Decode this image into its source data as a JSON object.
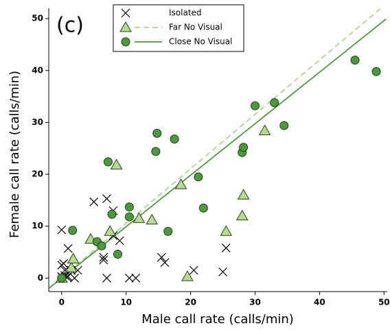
{
  "chart_data": {
    "type": "scatter",
    "annotation": "(c)",
    "x_label": "Male call rate (calls/min)",
    "y_label": "Female call rate (calls/min)",
    "xlim": [
      -2,
      50.5
    ],
    "ylim": [
      -2.6,
      52
    ],
    "xticks": [
      0,
      10,
      20,
      30,
      40,
      50
    ],
    "yticks": [
      0,
      10,
      20,
      30,
      40,
      50
    ],
    "series": [
      {
        "name": "Isolated",
        "marker": "cross",
        "color": "#000000",
        "x": [
          0,
          0,
          0.3,
          0.5,
          0.2,
          0.5,
          1,
          1,
          0.8,
          1.5,
          2,
          2.5,
          6.5,
          6.5,
          7,
          5,
          8,
          9,
          7,
          10.5,
          11.5,
          15.5,
          16,
          20.5,
          25,
          25.5,
          0,
          8
        ],
        "values": [
          9.3,
          0.3,
          2.8,
          1.5,
          0,
          0.5,
          5.7,
          0.3,
          0.2,
          1.5,
          0,
          1.5,
          3.5,
          4,
          15.3,
          14.7,
          13,
          7.2,
          0,
          0,
          0,
          4,
          3,
          1.5,
          1.2,
          5.8,
          2.5,
          8.2
        ]
      },
      {
        "name": "Far No Visual",
        "marker": "triangle",
        "color": "#b3dc8e",
        "line_color": "#a9d98a",
        "line_style": "dashed",
        "x": [
          0,
          1.5,
          1.8,
          4.5,
          7.5,
          8.5,
          12,
          14,
          18.5,
          19.5,
          25.5,
          28,
          28.2,
          31.5
        ],
        "values": [
          0,
          2,
          3.7,
          7.5,
          9,
          21.8,
          11.5,
          11.2,
          18,
          0.3,
          9,
          12,
          16,
          28.4
        ],
        "fit": {
          "x": [
            -2,
            49.7
          ],
          "values": [
            -2,
            52.2
          ]
        }
      },
      {
        "name": "Close No Visual",
        "marker": "circle",
        "color": "#4c9a3c",
        "line_color": "#4c9a3c",
        "line_style": "solid",
        "x": [
          0,
          1.7,
          5.5,
          6.2,
          7.2,
          7.8,
          8.7,
          10.5,
          10.5,
          14.6,
          14.8,
          16.5,
          17.5,
          21.2,
          22,
          28,
          28.2,
          30,
          33,
          34.5,
          45.5,
          48.8
        ],
        "values": [
          0,
          9.2,
          7,
          6.2,
          22.4,
          12.3,
          4.6,
          13.7,
          11.8,
          24.4,
          27.9,
          9,
          26.8,
          19.5,
          13.5,
          24.2,
          25.2,
          33.2,
          33.8,
          29.4,
          42,
          39.8
        ],
        "fit": {
          "x": [
            -2,
            50.3
          ],
          "values": [
            -2,
            49.9
          ]
        }
      }
    ]
  }
}
